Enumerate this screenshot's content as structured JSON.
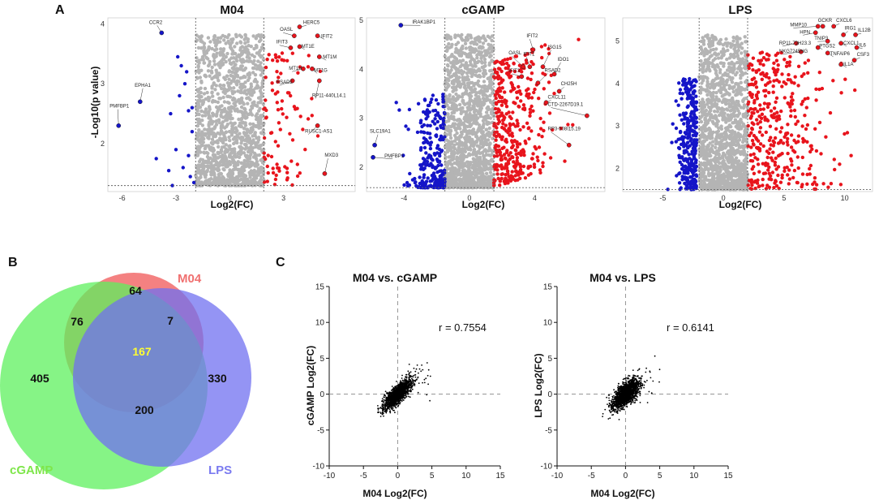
{
  "panel_labels": {
    "a": "A",
    "b": "B",
    "c": "C"
  },
  "colors": {
    "up": "#e8141c",
    "down": "#1515c8",
    "ns": "#b4b4b4",
    "m04": "#f26b6b",
    "cgamp": "#5ef05e",
    "lps": "#7070f0",
    "overlap_center": "#ffff33",
    "cgamp_label": "#7ee64a",
    "lps_label": "#7b7bf0",
    "m04_label": "#f07070"
  },
  "chart_data": [
    {
      "type": "scatter",
      "id": "m04",
      "title": "M04",
      "xlabel": "Log2(FC)",
      "ylabel": "-Log10(p value)",
      "xlim": [
        -6.8,
        7
      ],
      "ylim": [
        1.2,
        4.1
      ],
      "xticks": [
        -6,
        -3,
        0,
        3
      ],
      "yticks": [
        2,
        3,
        4
      ],
      "vlines": [
        -1.9,
        1.9
      ],
      "hline": 1.3,
      "down_points": [
        [
          -6.2,
          2.3
        ],
        [
          -5.0,
          2.7
        ],
        [
          -3.8,
          3.85
        ],
        [
          -4.1,
          1.75
        ],
        [
          -3.2,
          1.3
        ],
        [
          -2.9,
          3.45
        ],
        [
          -2.7,
          3.3
        ],
        [
          -2.5,
          3.0
        ],
        [
          -2.3,
          2.55
        ],
        [
          -2.1,
          2.2
        ],
        [
          -2.6,
          1.6
        ],
        [
          -2.2,
          1.45
        ],
        [
          -3.3,
          2.5
        ],
        [
          -3.0,
          1.9
        ],
        [
          -2.4,
          3.2
        ],
        [
          -2.0,
          1.35
        ],
        [
          -2.8,
          2.8
        ],
        [
          -2.3,
          1.8
        ],
        [
          -2.1,
          2.6
        ],
        [
          -3.4,
          1.55
        ]
      ],
      "labels": [
        {
          "name": "CCR2",
          "pt": [
            -3.8,
            3.85
          ],
          "txt": [
            -4.5,
            4.0
          ]
        },
        {
          "name": "EPHA1",
          "pt": [
            -5.0,
            2.7
          ],
          "txt": [
            -5.3,
            2.95
          ]
        },
        {
          "name": "PMFBP1",
          "pt": [
            -6.2,
            2.3
          ],
          "txt": [
            -6.7,
            2.6
          ]
        },
        {
          "name": "HERC5",
          "pt": [
            3.9,
            3.95
          ],
          "txt": [
            4.1,
            4.0
          ]
        },
        {
          "name": "OASL",
          "pt": [
            3.6,
            3.8
          ],
          "txt": [
            2.8,
            3.88
          ]
        },
        {
          "name": "IFIT2",
          "pt": [
            4.9,
            3.8
          ],
          "txt": [
            5.1,
            3.77
          ]
        },
        {
          "name": "IFIT3",
          "pt": [
            3.4,
            3.6
          ],
          "txt": [
            2.6,
            3.67
          ]
        },
        {
          "name": "MT1E",
          "pt": [
            3.9,
            3.62
          ],
          "txt": [
            4.0,
            3.6
          ]
        },
        {
          "name": "MT1M",
          "pt": [
            5.0,
            3.45
          ],
          "txt": [
            5.2,
            3.42
          ]
        },
        {
          "name": "MT1H",
          "pt": [
            4.1,
            3.25
          ],
          "txt": [
            3.3,
            3.23
          ]
        },
        {
          "name": "MT1G",
          "pt": [
            4.6,
            3.25
          ],
          "txt": [
            4.7,
            3.2
          ]
        },
        {
          "name": "RSAD2",
          "pt": [
            3.5,
            3.05
          ],
          "txt": [
            2.6,
            3.0
          ]
        },
        {
          "name": "RP11-440L14.1",
          "pt": [
            5.0,
            3.05
          ],
          "txt": [
            4.6,
            2.78
          ]
        },
        {
          "name": "RUSC1-AS1",
          "pt": [
            4.9,
            2.3
          ],
          "txt": [
            4.2,
            2.18
          ]
        },
        {
          "name": "MXD3",
          "pt": [
            5.3,
            1.5
          ],
          "txt": [
            5.3,
            1.78
          ]
        }
      ]
    },
    {
      "type": "scatter",
      "id": "cgamp",
      "title": "cGAMP",
      "xlabel": "Log2(FC)",
      "ylabel": "",
      "xlim": [
        -6.3,
        8.3
      ],
      "ylim": [
        1.5,
        5.05
      ],
      "xticks": [
        -4,
        0,
        4
      ],
      "yticks": [
        2,
        3,
        4,
        5
      ],
      "vlines": [
        -1.5,
        1.5
      ],
      "hline": 1.58,
      "labels": [
        {
          "name": "IRAK1BP1",
          "pt": [
            -4.2,
            4.9
          ],
          "txt": [
            -3.5,
            4.93
          ]
        },
        {
          "name": "SLC19A1",
          "pt": [
            -5.8,
            2.45
          ],
          "txt": [
            -6.1,
            2.7
          ]
        },
        {
          "name": "PMFBP1",
          "pt": [
            -5.9,
            2.2
          ],
          "txt": [
            -5.2,
            2.2
          ]
        },
        {
          "name": "IFIT2",
          "pt": [
            3.9,
            4.4
          ],
          "txt": [
            3.5,
            4.65
          ]
        },
        {
          "name": "OASL",
          "pt": [
            3.3,
            4.05
          ],
          "txt": [
            2.4,
            4.3
          ]
        },
        {
          "name": "IFIT1",
          "pt": [
            3.7,
            4.05
          ],
          "txt": [
            3.3,
            4.28
          ]
        },
        {
          "name": "ISG15",
          "pt": [
            4.5,
            4.05
          ],
          "txt": [
            4.8,
            4.42
          ]
        },
        {
          "name": "IFIT3",
          "pt": [
            3.2,
            3.85
          ],
          "txt": [
            2.4,
            3.94
          ]
        },
        {
          "name": "IDO1",
          "pt": [
            5.2,
            3.9
          ],
          "txt": [
            5.4,
            4.17
          ]
        },
        {
          "name": "RSAD2",
          "pt": [
            4.2,
            3.72
          ],
          "txt": [
            4.6,
            3.95
          ]
        },
        {
          "name": "CH25H",
          "pt": [
            5.5,
            3.55
          ],
          "txt": [
            5.6,
            3.67
          ]
        },
        {
          "name": "CXCL11",
          "pt": [
            4.7,
            3.32
          ],
          "txt": [
            4.8,
            3.4
          ]
        },
        {
          "name": "CTD-2267D19.1",
          "pt": [
            7.2,
            3.05
          ],
          "txt": [
            4.8,
            3.25
          ]
        },
        {
          "name": "RP3-508I15.19",
          "pt": [
            6.1,
            2.45
          ],
          "txt": [
            4.8,
            2.75
          ]
        }
      ]
    },
    {
      "type": "scatter",
      "id": "lps",
      "title": "LPS",
      "xlabel": "Log2(FC)",
      "ylabel": "",
      "xlim": [
        -8.3,
        12.3
      ],
      "ylim": [
        1.45,
        5.55
      ],
      "xticks": [
        -5,
        0,
        5,
        10
      ],
      "yticks": [
        2,
        3,
        4,
        5
      ],
      "vlines": [
        -2,
        2
      ],
      "hline": 1.5,
      "labels": [
        {
          "name": "MMP10",
          "pt": [
            7.8,
            5.35
          ],
          "txt": [
            5.5,
            5.35
          ]
        },
        {
          "name": "GCKR",
          "pt": [
            8.2,
            5.35
          ],
          "txt": [
            7.8,
            5.45
          ]
        },
        {
          "name": "CXCL6",
          "pt": [
            9.1,
            5.35
          ],
          "txt": [
            9.3,
            5.45
          ]
        },
        {
          "name": "HPN",
          "pt": [
            7.6,
            5.2
          ],
          "txt": [
            6.3,
            5.18
          ]
        },
        {
          "name": "IRG1",
          "pt": [
            9.9,
            5.15
          ],
          "txt": [
            10.0,
            5.27
          ]
        },
        {
          "name": "IL12B",
          "pt": [
            10.9,
            5.15
          ],
          "txt": [
            11.1,
            5.22
          ]
        },
        {
          "name": "TNIP3",
          "pt": [
            8.6,
            5.0
          ],
          "txt": [
            7.5,
            5.03
          ]
        },
        {
          "name": "RP11-79H23.3",
          "pt": [
            6.0,
            4.95
          ],
          "txt": [
            4.6,
            4.92
          ]
        },
        {
          "name": "CXCL1",
          "pt": [
            9.7,
            4.95
          ],
          "txt": [
            9.9,
            4.92
          ]
        },
        {
          "name": "IL6",
          "pt": [
            11.0,
            4.85
          ],
          "txt": [
            11.2,
            4.87
          ]
        },
        {
          "name": "PTGS2",
          "pt": [
            7.8,
            4.85
          ],
          "txt": [
            7.9,
            4.85
          ]
        },
        {
          "name": "NKG7245HG",
          "pt": [
            6.4,
            4.75
          ],
          "txt": [
            4.6,
            4.73
          ]
        },
        {
          "name": "TNFAIP6",
          "pt": [
            8.6,
            4.72
          ],
          "txt": [
            8.8,
            4.67
          ]
        },
        {
          "name": "CSF3",
          "pt": [
            10.8,
            4.55
          ],
          "txt": [
            11.0,
            4.65
          ]
        },
        {
          "name": "IL1A",
          "pt": [
            9.7,
            4.45
          ],
          "txt": [
            9.9,
            4.42
          ]
        }
      ]
    },
    {
      "type": "venn",
      "sets": [
        "M04",
        "cGAMP",
        "LPS"
      ],
      "regions": {
        "m04_only": 64,
        "m04_cgamp": 76,
        "m04_lps": 7,
        "all": 167,
        "cgamp_only": 405,
        "cgamp_lps": 200,
        "lps_only": 330
      }
    },
    {
      "type": "scatter",
      "id": "corr1",
      "title": "M04 vs. cGAMP",
      "xlabel": "M04 Log2(FC)",
      "ylabel": "cGAMP Log2(FC)",
      "xlim": [
        -10,
        15
      ],
      "ylim": [
        -10,
        15
      ],
      "xticks": [
        -10,
        -5,
        0,
        5,
        10,
        15
      ],
      "yticks": [
        -10,
        -5,
        0,
        5,
        10,
        15
      ],
      "r_label": "r = 0.7554",
      "r": 0.7554
    },
    {
      "type": "scatter",
      "id": "corr2",
      "title": "M04 vs. LPS",
      "xlabel": "M04 Log2(FC)",
      "ylabel": "LPS Log2(FC)",
      "xlim": [
        -10,
        15
      ],
      "ylim": [
        -10,
        15
      ],
      "xticks": [
        -10,
        -5,
        0,
        5,
        10,
        15
      ],
      "yticks": [
        -10,
        -5,
        0,
        5,
        10,
        15
      ],
      "r_label": "r = 0.6141",
      "r": 0.6141
    }
  ]
}
